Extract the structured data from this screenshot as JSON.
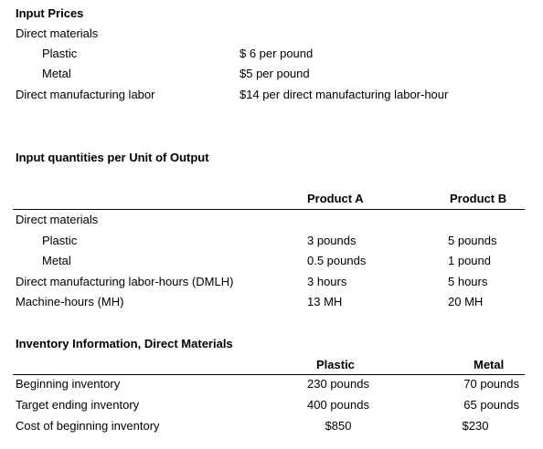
{
  "input_prices": {
    "heading": "Input Prices",
    "direct_materials_label": "Direct materials",
    "plastic_label": "Plastic",
    "plastic_price": "$ 6 per pound",
    "metal_label": "Metal",
    "metal_price": "$5 per pound",
    "labor_label": "Direct manufacturing labor",
    "labor_price": "$14 per direct manufacturing labor-hour"
  },
  "input_quantities": {
    "heading": "Input quantities per Unit of Output",
    "columns": [
      "Product A",
      "Product B"
    ],
    "direct_materials_label": "Direct materials",
    "rows": [
      {
        "label": "Plastic",
        "a": "3 pounds",
        "b": "5 pounds"
      },
      {
        "label": "Metal",
        "a": "0.5 pounds",
        "b": "1 pound"
      },
      {
        "label": "Direct manufacturing labor-hours (DMLH)",
        "a": "3 hours",
        "b": "5 hours"
      },
      {
        "label": "Machine-hours (MH)",
        "a": "13 MH",
        "b": "20 MH"
      }
    ]
  },
  "inventory": {
    "heading": "Inventory Information, Direct Materials",
    "columns": [
      "Plastic",
      "Metal"
    ],
    "rows": [
      {
        "label": "Beginning inventory",
        "plastic": "230 pounds",
        "metal": "70 pounds"
      },
      {
        "label": "Target ending inventory",
        "plastic": "400 pounds",
        "metal": "65 pounds"
      },
      {
        "label": "Cost of beginning inventory",
        "plastic": "$850",
        "metal": "$230"
      }
    ]
  }
}
